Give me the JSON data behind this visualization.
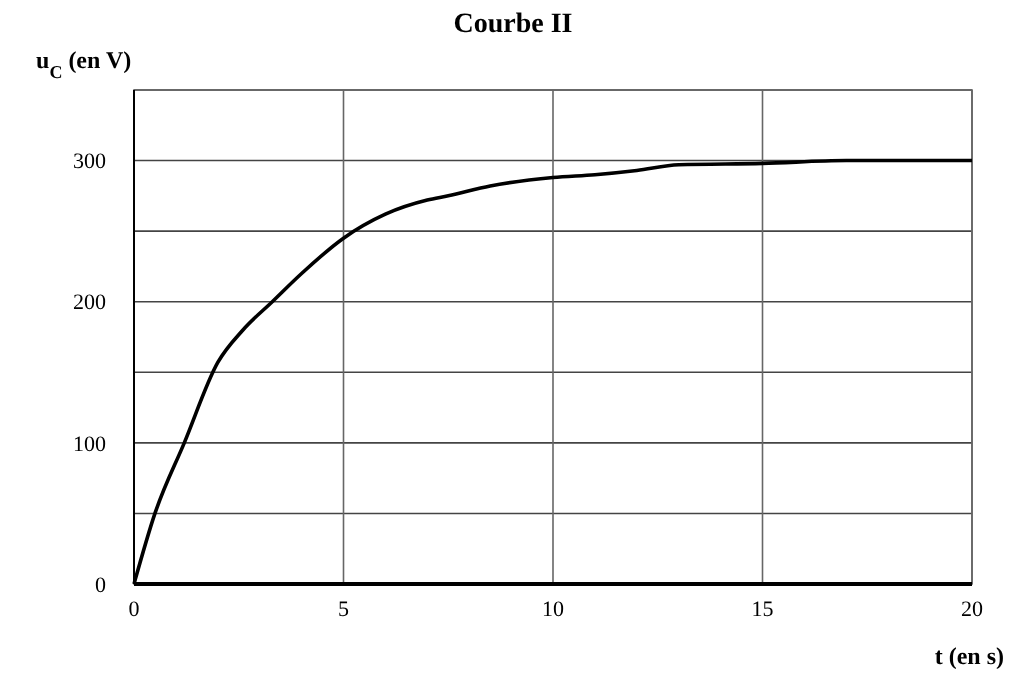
{
  "chart_data": {
    "type": "line",
    "title": "Courbe II",
    "xlabel": "t (en s)",
    "ylabel": "u$_{C}$ (en V)",
    "x": [
      0,
      0.5,
      1.2,
      2,
      2.6,
      3.3,
      4,
      5,
      6,
      7,
      7.5,
      8.5,
      10,
      11,
      12,
      13,
      15,
      17,
      20
    ],
    "series": [
      {
        "color": "#000000",
        "values": [
          0,
          50,
          100,
          157,
          180,
          200,
          220,
          245,
          262,
          272,
          275,
          282,
          288,
          290,
          293,
          297,
          298,
          300,
          300
        ]
      }
    ],
    "xlim": [
      0,
      20
    ],
    "ylim": [
      0,
      350
    ],
    "xticks": [
      0,
      5,
      10,
      15,
      20
    ],
    "yticks": [
      0,
      {
        "value": 50,
        "label": null
      },
      100,
      {
        "value": 150,
        "label": null
      },
      200,
      {
        "value": 250,
        "label": null
      },
      300,
      {
        "value": 350,
        "label": null
      }
    ],
    "grid": true,
    "marker": "none",
    "line_style": "solid"
  }
}
